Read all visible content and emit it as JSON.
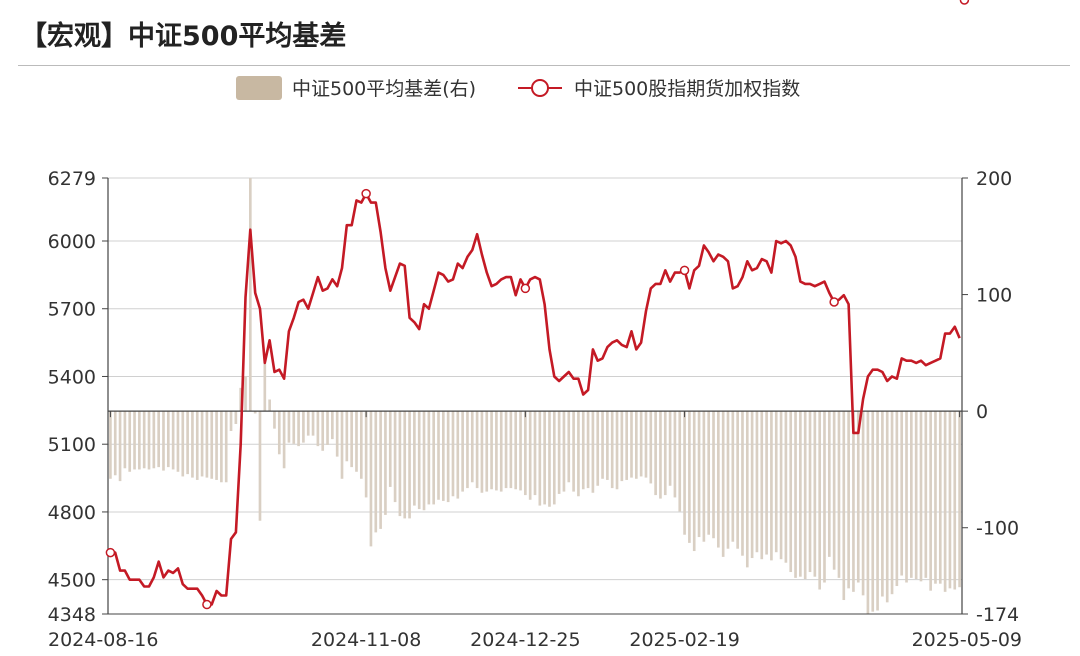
{
  "header": {
    "title": "【宏观】中证500平均基差"
  },
  "chart_data": {
    "type": "bar+line",
    "title": "【宏观】中证500平均基差",
    "legend": {
      "placement": "top-center",
      "items": [
        {
          "label": "中证500平均基差(右)",
          "kind": "bar"
        },
        {
          "label": "中证500股指期货加权指数",
          "kind": "line"
        }
      ]
    },
    "colors": {
      "bar": "#d9cfc3",
      "bar_legend": "#c8b8a2",
      "line": "#c41a25",
      "axis": "#444444",
      "grid": "#d0d0d0"
    },
    "y_left": {
      "ticks": [
        4348,
        4500,
        4800,
        5100,
        5400,
        5700,
        6000,
        6279
      ],
      "range": [
        4348,
        6279
      ]
    },
    "y_right": {
      "ticks": [
        -174,
        -100,
        0,
        100,
        200
      ],
      "range": [
        -174,
        200
      ]
    },
    "x_labels": [
      "2024-08-16",
      "2024-11-08",
      "2024-12-25",
      "2025-02-19",
      "2025-05-09"
    ],
    "grid": true,
    "series": [
      {
        "name": "中证500股指期货加权指数",
        "axis": "left",
        "values": [
          4620,
          4620,
          4540,
          4540,
          4500,
          4500,
          4500,
          4470,
          4470,
          4510,
          4580,
          4510,
          4540,
          4530,
          4550,
          4480,
          4460,
          4460,
          4460,
          4430,
          4390,
          4390,
          4450,
          4430,
          4430,
          4680,
          4710,
          5100,
          5750,
          6050,
          5770,
          5700,
          5460,
          5560,
          5420,
          5430,
          5390,
          5600,
          5660,
          5730,
          5740,
          5700,
          5770,
          5840,
          5780,
          5790,
          5830,
          5800,
          5880,
          6070,
          6070,
          6180,
          6170,
          6210,
          6170,
          6170,
          6040,
          5880,
          5780,
          5840,
          5900,
          5890,
          5660,
          5640,
          5610,
          5720,
          5700,
          5780,
          5860,
          5850,
          5820,
          5830,
          5900,
          5880,
          5930,
          5960,
          6030,
          5940,
          5860,
          5800,
          5810,
          5830,
          5840,
          5840,
          5760,
          5830,
          5790,
          5830,
          5840,
          5830,
          5720,
          5520,
          5400,
          5380,
          5400,
          5420,
          5390,
          5390,
          5320,
          5340,
          5520,
          5470,
          5480,
          5530,
          5550,
          5560,
          5540,
          5530,
          5600,
          5520,
          5550,
          5690,
          5790,
          5810,
          5810,
          5870,
          5820,
          5860,
          5860,
          5870,
          5790,
          5870,
          5890,
          5980,
          5950,
          5910,
          5940,
          5930,
          5910,
          5790,
          5800,
          5840,
          5910,
          5870,
          5880,
          5920,
          5910,
          5860,
          6000,
          5990,
          6000,
          5980,
          5930,
          5820,
          5810,
          5810,
          5800,
          5810,
          5820,
          5770,
          5730,
          5740,
          5760,
          5720,
          5150,
          5150,
          5300,
          5400,
          5430,
          5430,
          5420,
          5380,
          5400,
          5390,
          5480,
          5470,
          5470,
          5460,
          5470,
          5450,
          5460,
          5470,
          5480,
          5590,
          5590,
          5620,
          5570
        ]
      },
      {
        "name": "中证500平均基差(右)",
        "axis": "right",
        "values": [
          -58,
          -55,
          -60,
          -49,
          -52,
          -50,
          -50,
          -49,
          -50,
          -49,
          -48,
          -51,
          -48,
          -50,
          -52,
          -56,
          -54,
          -57,
          -59,
          -56,
          -57,
          -58,
          -59,
          -61,
          -61,
          -17,
          -11,
          20,
          30,
          200,
          -2,
          -94,
          41,
          10,
          -15,
          -37,
          -49,
          -27,
          -28,
          -30,
          -27,
          -21,
          -21,
          -30,
          -34,
          -29,
          -24,
          -39,
          -58,
          -43,
          -48,
          -52,
          -58,
          -74,
          -116,
          -104,
          -101,
          -89,
          -65,
          -78,
          -90,
          -92,
          -92,
          -81,
          -84,
          -85,
          -80,
          -80,
          -76,
          -77,
          -78,
          -73,
          -75,
          -69,
          -66,
          -61,
          -66,
          -70,
          -69,
          -67,
          -68,
          -69,
          -66,
          -66,
          -67,
          -68,
          -72,
          -76,
          -72,
          -81,
          -80,
          -82,
          -80,
          -71,
          -69,
          -61,
          -69,
          -73,
          -67,
          -66,
          -70,
          -64,
          -58,
          -59,
          -66,
          -67,
          -60,
          -59,
          -57,
          -58,
          -56,
          -57,
          -62,
          -72,
          -75,
          -72,
          -64,
          -74,
          -86,
          -106,
          -113,
          -120,
          -108,
          -112,
          -106,
          -109,
          -117,
          -125,
          -118,
          -112,
          -118,
          -124,
          -134,
          -126,
          -121,
          -127,
          -123,
          -128,
          -121,
          -127,
          -130,
          -138,
          -143,
          -142,
          -144,
          -138,
          -142,
          -153,
          -147,
          -125,
          -136,
          -143,
          -162,
          -152,
          -155,
          -147,
          -158,
          -174,
          -172,
          -171,
          -159,
          -164,
          -157,
          -150,
          -141,
          -147,
          -143,
          -144,
          -146,
          -143,
          -154,
          -148,
          -148,
          -155,
          -152,
          -153,
          -151
        ]
      }
    ],
    "markers": [
      {
        "index": 0
      },
      {
        "index": 20
      },
      {
        "index": 53
      },
      {
        "index": 86
      },
      {
        "index": 119
      },
      {
        "index": 150
      },
      {
        "index": 177
      }
    ]
  }
}
